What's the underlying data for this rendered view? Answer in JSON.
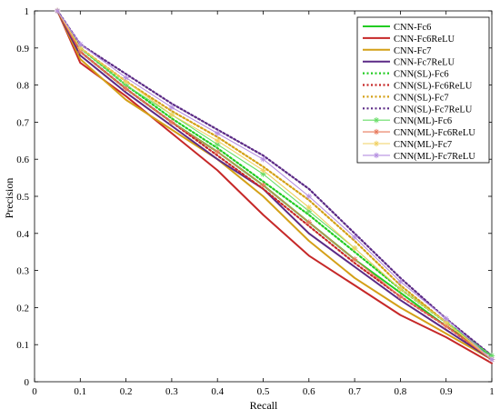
{
  "chart_data": {
    "type": "line",
    "xlabel": "Recall",
    "ylabel": "Precision",
    "xlim": [
      0,
      1
    ],
    "ylim": [
      0,
      1
    ],
    "x_ticks": [
      "0",
      "0.1",
      "0.2",
      "0.3",
      "0.4",
      "0.5",
      "0.6",
      "0.7",
      "0.8",
      "0.9",
      "1"
    ],
    "y_ticks": [
      "0",
      "0.1",
      "0.2",
      "0.3",
      "0.4",
      "0.5",
      "0.6",
      "0.7",
      "0.8",
      "0.9",
      "1"
    ],
    "grid": false,
    "legend_position": "top-right",
    "series": [
      {
        "name": "CNN-Fc6",
        "color": "#22cc22",
        "style": "solid",
        "marker": "none",
        "x": [
          0.05,
          0.1,
          0.2,
          0.3,
          0.4,
          0.5,
          0.6,
          0.7,
          0.8,
          0.9,
          1.0
        ],
        "y": [
          1.0,
          0.89,
          0.79,
          0.7,
          0.62,
          0.53,
          0.43,
          0.33,
          0.24,
          0.15,
          0.07
        ]
      },
      {
        "name": "CNN-Fc6ReLU",
        "color": "#c62828",
        "style": "solid",
        "marker": "none",
        "x": [
          0.05,
          0.1,
          0.2,
          0.3,
          0.4,
          0.5,
          0.6,
          0.7,
          0.8,
          0.9,
          1.0
        ],
        "y": [
          1.0,
          0.86,
          0.77,
          0.67,
          0.57,
          0.45,
          0.34,
          0.26,
          0.18,
          0.12,
          0.05
        ]
      },
      {
        "name": "CNN-Fc7",
        "color": "#d4a017",
        "style": "solid",
        "marker": "none",
        "x": [
          0.05,
          0.1,
          0.2,
          0.3,
          0.4,
          0.5,
          0.6,
          0.7,
          0.8,
          0.9,
          1.0
        ],
        "y": [
          1.0,
          0.87,
          0.76,
          0.68,
          0.6,
          0.5,
          0.38,
          0.28,
          0.2,
          0.13,
          0.06
        ]
      },
      {
        "name": "CNN-Fc7ReLU",
        "color": "#5b2a86",
        "style": "solid",
        "marker": "none",
        "x": [
          0.05,
          0.1,
          0.2,
          0.3,
          0.4,
          0.5,
          0.6,
          0.7,
          0.8,
          0.9,
          1.0
        ],
        "y": [
          1.0,
          0.88,
          0.78,
          0.69,
          0.6,
          0.52,
          0.4,
          0.31,
          0.22,
          0.14,
          0.06
        ]
      },
      {
        "name": "CNN(SL)-Fc6",
        "color": "#22cc22",
        "style": "dotted",
        "marker": "none",
        "x": [
          0.05,
          0.1,
          0.2,
          0.3,
          0.4,
          0.5,
          0.6,
          0.7,
          0.8,
          0.9,
          1.0
        ],
        "y": [
          1.0,
          0.9,
          0.8,
          0.71,
          0.63,
          0.54,
          0.45,
          0.35,
          0.25,
          0.16,
          0.07
        ]
      },
      {
        "name": "CNN(SL)-Fc6ReLU",
        "color": "#c62828",
        "style": "dotted",
        "marker": "none",
        "x": [
          0.05,
          0.1,
          0.2,
          0.3,
          0.4,
          0.5,
          0.6,
          0.7,
          0.8,
          0.9,
          1.0
        ],
        "y": [
          1.0,
          0.89,
          0.79,
          0.7,
          0.61,
          0.52,
          0.42,
          0.32,
          0.23,
          0.15,
          0.06
        ]
      },
      {
        "name": "CNN(SL)-Fc7",
        "color": "#d4a017",
        "style": "dotted",
        "marker": "none",
        "x": [
          0.05,
          0.1,
          0.2,
          0.3,
          0.4,
          0.5,
          0.6,
          0.7,
          0.8,
          0.9,
          1.0
        ],
        "y": [
          1.0,
          0.9,
          0.81,
          0.73,
          0.66,
          0.58,
          0.49,
          0.38,
          0.26,
          0.16,
          0.06
        ]
      },
      {
        "name": "CNN(SL)-Fc7ReLU",
        "color": "#5b2a86",
        "style": "dotted",
        "marker": "none",
        "x": [
          0.05,
          0.1,
          0.2,
          0.3,
          0.4,
          0.5,
          0.6,
          0.7,
          0.8,
          0.9,
          1.0
        ],
        "y": [
          1.0,
          0.91,
          0.83,
          0.75,
          0.68,
          0.61,
          0.52,
          0.4,
          0.28,
          0.17,
          0.07
        ]
      },
      {
        "name": "CNN(ML)-Fc6",
        "color": "#66dd66",
        "style": "solid",
        "marker": "star",
        "x": [
          0.05,
          0.1,
          0.2,
          0.3,
          0.4,
          0.5,
          0.6,
          0.7,
          0.8,
          0.9,
          1.0
        ],
        "y": [
          1.0,
          0.9,
          0.8,
          0.72,
          0.64,
          0.56,
          0.46,
          0.36,
          0.25,
          0.16,
          0.07
        ]
      },
      {
        "name": "CNN(ML)-Fc6ReLU",
        "color": "#e8785a",
        "style": "solid",
        "marker": "star",
        "x": [
          0.05,
          0.1,
          0.2,
          0.3,
          0.4,
          0.5,
          0.6,
          0.7,
          0.8,
          0.9,
          1.0
        ],
        "y": [
          1.0,
          0.89,
          0.79,
          0.7,
          0.62,
          0.53,
          0.43,
          0.33,
          0.23,
          0.15,
          0.06
        ]
      },
      {
        "name": "CNN(ML)-Fc7",
        "color": "#f0d060",
        "style": "solid",
        "marker": "star",
        "x": [
          0.05,
          0.1,
          0.2,
          0.3,
          0.4,
          0.5,
          0.6,
          0.7,
          0.8,
          0.9,
          1.0
        ],
        "y": [
          1.0,
          0.9,
          0.81,
          0.72,
          0.65,
          0.57,
          0.47,
          0.36,
          0.25,
          0.16,
          0.06
        ]
      },
      {
        "name": "CNN(ML)-Fc7ReLU",
        "color": "#b48ee0",
        "style": "solid",
        "marker": "star",
        "x": [
          0.05,
          0.1,
          0.2,
          0.3,
          0.4,
          0.5,
          0.6,
          0.7,
          0.8,
          0.9,
          1.0
        ],
        "y": [
          1.0,
          0.91,
          0.82,
          0.74,
          0.67,
          0.6,
          0.5,
          0.39,
          0.27,
          0.17,
          0.06
        ]
      }
    ]
  }
}
